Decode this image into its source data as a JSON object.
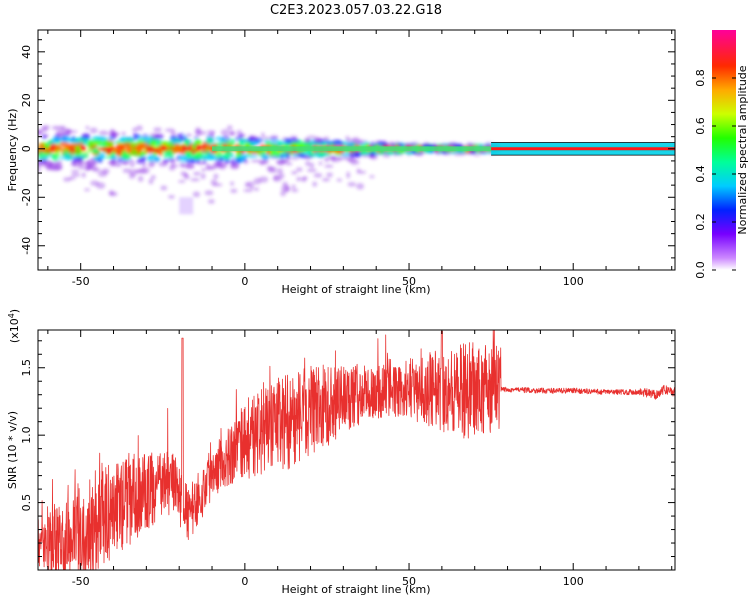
{
  "title": "C2E3.2023.057.03.22.G18",
  "chart_data": [
    {
      "type": "heatmap",
      "xlabel": "Height of straight line (km)",
      "ylabel": "Frequency (Hz)",
      "xlim": [
        -63,
        131
      ],
      "ylim": [
        -50,
        49
      ],
      "x_ticks": [
        -50,
        0,
        50,
        100
      ],
      "y_ticks": [
        -40,
        -20,
        0,
        20,
        40
      ],
      "colorbar": {
        "label": "Normalized spectral amplitude",
        "ticks": [
          0.0,
          0.2,
          0.4,
          0.6,
          0.8
        ],
        "tick_labels": [
          "0.0",
          "0.2",
          "0.4",
          "0.6",
          "0.8"
        ],
        "range": [
          0,
          1
        ]
      },
      "line": {
        "y": 0,
        "x_start": 75,
        "x_end": 131
      }
    },
    {
      "type": "line",
      "xlabel": "Height of straight line (km)",
      "ylabel": "SNR (10 * v/v)",
      "y_multiplier": "(x10",
      "y_multiplier_exp": "4",
      "y_multiplier_close": ")",
      "xlim": [
        -63,
        131
      ],
      "ylim": [
        0,
        1.78
      ],
      "x_ticks": [
        -50,
        0,
        50,
        100
      ],
      "y_ticks": [
        0.5,
        1.0,
        1.5
      ],
      "y_tick_labels": [
        "0.5",
        "1.0",
        "1.5"
      ],
      "color": "#e8302e",
      "series": [
        {
          "x": [
            -63,
            -55,
            -50,
            -45,
            -40,
            -35,
            -30,
            -25,
            -22,
            -19,
            -17,
            -15,
            -12,
            -10,
            -5,
            0,
            5,
            10,
            15,
            20,
            25,
            30,
            35,
            40,
            45,
            50,
            55,
            60,
            65,
            70,
            75,
            80,
            90,
            100,
            110,
            115,
            120,
            125,
            128,
            131
          ],
          "y": [
            0.15,
            0.2,
            0.28,
            0.35,
            0.45,
            0.52,
            0.58,
            0.62,
            0.66,
            0.5,
            0.4,
            0.5,
            0.62,
            0.75,
            0.85,
            0.95,
            1.02,
            1.08,
            1.12,
            1.18,
            1.22,
            1.27,
            1.3,
            1.32,
            1.33,
            1.34,
            1.34,
            1.34,
            1.33,
            1.33,
            1.33,
            1.34,
            1.33,
            1.33,
            1.32,
            1.32,
            1.32,
            1.3,
            1.34,
            1.32
          ]
        }
      ]
    }
  ]
}
